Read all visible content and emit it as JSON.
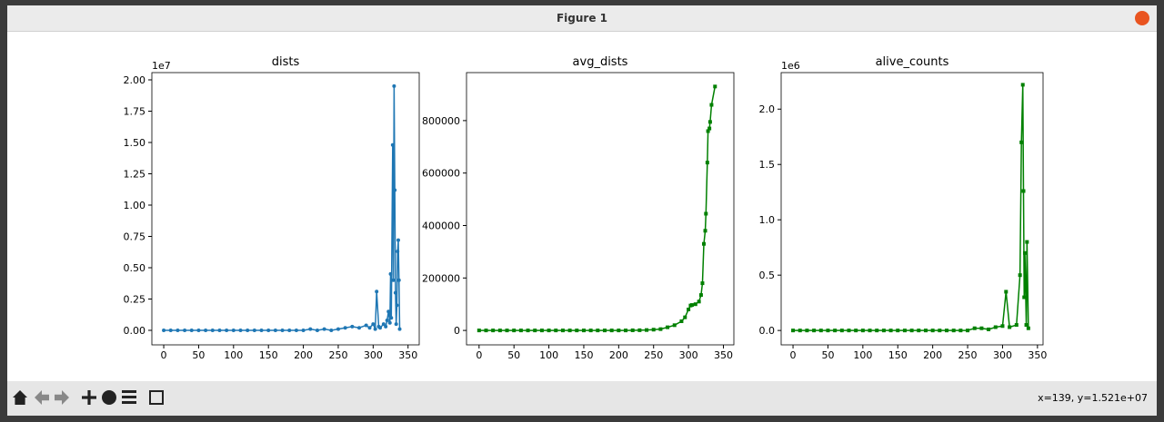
{
  "window": {
    "title": "Figure 1",
    "status": "x=139, y=1.521e+07"
  },
  "chart_data": [
    {
      "type": "line",
      "title": "dists",
      "offset_label": "1e7",
      "color": "#1f77b4",
      "marker": "circle",
      "x": [
        0,
        10,
        20,
        30,
        40,
        50,
        60,
        70,
        80,
        90,
        100,
        110,
        120,
        130,
        140,
        150,
        160,
        170,
        180,
        190,
        200,
        210,
        220,
        230,
        240,
        250,
        260,
        270,
        280,
        290,
        295,
        300,
        303,
        305,
        308,
        310,
        315,
        318,
        320,
        322,
        324,
        325,
        326,
        328,
        329,
        330,
        331,
        332,
        333,
        334,
        335,
        336,
        337,
        338
      ],
      "values": [
        0,
        0,
        0,
        0,
        0,
        0,
        0,
        0,
        0,
        0,
        0,
        0,
        0,
        0,
        0,
        0,
        0,
        0,
        0,
        0,
        0,
        0.01,
        0,
        0.01,
        0,
        0.01,
        0.02,
        0.03,
        0.02,
        0.04,
        0.02,
        0.05,
        0.01,
        0.31,
        0.03,
        0.02,
        0.05,
        0.03,
        0.08,
        0.15,
        0.06,
        0.45,
        0.1,
        1.48,
        0.4,
        1.95,
        1.12,
        0.3,
        0.05,
        0.2,
        0.63,
        0.72,
        0.4,
        0.01
      ],
      "xlim": [
        -17,
        366
      ],
      "ylim": [
        -0.116,
        2.058
      ],
      "xticks": [
        0,
        50,
        100,
        150,
        200,
        250,
        300,
        350
      ],
      "yticks": [
        {
          "value": 0,
          "label": "0.00"
        },
        {
          "value": 0.25,
          "label": "0.25"
        },
        {
          "value": 0.5,
          "label": "0.50"
        },
        {
          "value": 0.75,
          "label": "0.75"
        },
        {
          "value": 1,
          "label": "1.00"
        },
        {
          "value": 1.25,
          "label": "1.25"
        },
        {
          "value": 1.5,
          "label": "1.50"
        },
        {
          "value": 1.75,
          "label": "1.75"
        },
        {
          "value": 2,
          "label": "2.00"
        }
      ]
    },
    {
      "type": "line",
      "title": "avg_dists",
      "color": "#008000",
      "marker": "square",
      "x": [
        0,
        10,
        20,
        30,
        40,
        50,
        60,
        70,
        80,
        90,
        100,
        110,
        120,
        130,
        140,
        150,
        160,
        170,
        180,
        190,
        200,
        210,
        220,
        230,
        240,
        250,
        260,
        270,
        280,
        290,
        295,
        300,
        303,
        305,
        310,
        315,
        318,
        320,
        322,
        324,
        325,
        327,
        328,
        330,
        331,
        333,
        338
      ],
      "values": [
        0,
        0,
        0,
        0,
        0,
        0,
        0,
        0,
        0,
        0,
        0,
        0,
        0,
        0,
        0,
        0,
        0,
        0,
        0,
        0,
        0,
        0,
        500,
        800,
        1500,
        3000,
        5000,
        12000,
        20000,
        35000,
        50000,
        80000,
        95000,
        97000,
        100000,
        110000,
        135000,
        180000,
        330000,
        380000,
        445000,
        640000,
        760000,
        770000,
        795000,
        860000,
        930000
      ],
      "xlim": [
        -18,
        365
      ],
      "ylim": [
        -55000,
        983000
      ],
      "xticks": [
        0,
        50,
        100,
        150,
        200,
        250,
        300,
        350
      ],
      "yticks": [
        0,
        200000,
        400000,
        600000,
        800000
      ]
    },
    {
      "type": "line",
      "title": "alive_counts",
      "offset_label": "1e6",
      "color": "#008000",
      "marker": "square",
      "x": [
        0,
        10,
        20,
        30,
        40,
        50,
        60,
        70,
        80,
        90,
        100,
        110,
        120,
        130,
        140,
        150,
        160,
        170,
        180,
        190,
        200,
        210,
        220,
        230,
        240,
        250,
        260,
        270,
        280,
        290,
        300,
        305,
        310,
        320,
        325,
        327,
        329,
        330,
        331,
        332,
        334,
        335,
        337
      ],
      "values": [
        0,
        0,
        0,
        0,
        0,
        0,
        0,
        0,
        0,
        0,
        0,
        0,
        0,
        0,
        0,
        0,
        0,
        0,
        0,
        0,
        0,
        0,
        0,
        0,
        0,
        0,
        0.02,
        0.02,
        0.01,
        0.03,
        0.04,
        0.35,
        0.03,
        0.05,
        0.5,
        1.7,
        2.22,
        1.26,
        0.3,
        0.7,
        0.05,
        0.8,
        0.02
      ],
      "xlim": [
        -17,
        358
      ],
      "ylim": [
        -0.13,
        2.33
      ],
      "xticks": [
        0,
        50,
        100,
        150,
        200,
        250,
        300,
        350
      ],
      "yticks": [
        {
          "value": 0,
          "label": "0.0"
        },
        {
          "value": 0.5,
          "label": "0.5"
        },
        {
          "value": 1,
          "label": "1.0"
        },
        {
          "value": 1.5,
          "label": "1.5"
        },
        {
          "value": 2,
          "label": "2.0"
        }
      ]
    }
  ]
}
